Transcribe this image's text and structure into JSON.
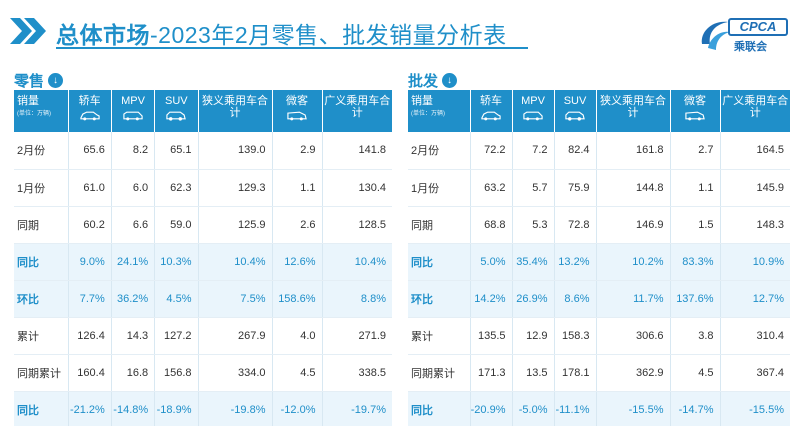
{
  "header": {
    "title_bold": "总体市场",
    "title_rest": "-2023年2月零售、批发销量分析表",
    "logo_text": "CPCA",
    "logo_subtext": "乘联会",
    "logo_icon": "swirl-logo-icon",
    "accent_color": "#1f8fc9"
  },
  "retail": {
    "section_label": "零售",
    "corner_label": "销量",
    "corner_unit": "(单位：万辆)",
    "columns": [
      "轿车",
      "MPV",
      "SUV",
      "狭义乘用车合计",
      "微客",
      "广义乘用车合计"
    ],
    "rows": [
      {
        "label": "2月份",
        "highlight": false,
        "values": [
          "65.6",
          "8.2",
          "65.1",
          "139.0",
          "2.9",
          "141.8"
        ]
      },
      {
        "label": "1月份",
        "highlight": false,
        "values": [
          "61.0",
          "6.0",
          "62.3",
          "129.3",
          "1.1",
          "130.4"
        ]
      },
      {
        "label": "同期",
        "highlight": false,
        "values": [
          "60.2",
          "6.6",
          "59.0",
          "125.9",
          "2.6",
          "128.5"
        ]
      },
      {
        "label": "同比",
        "highlight": true,
        "values": [
          "9.0%",
          "24.1%",
          "10.3%",
          "10.4%",
          "12.6%",
          "10.4%"
        ]
      },
      {
        "label": "环比",
        "highlight": true,
        "values": [
          "7.7%",
          "36.2%",
          "4.5%",
          "7.5%",
          "158.6%",
          "8.8%"
        ]
      },
      {
        "label": "累计",
        "highlight": false,
        "values": [
          "126.4",
          "14.3",
          "127.2",
          "267.9",
          "4.0",
          "271.9"
        ]
      },
      {
        "label": "同期累计",
        "highlight": false,
        "values": [
          "160.4",
          "16.8",
          "156.8",
          "334.0",
          "4.5",
          "338.5"
        ]
      },
      {
        "label": "同比",
        "highlight": true,
        "values": [
          "-21.2%",
          "-14.8%",
          "-18.9%",
          "-19.8%",
          "-12.0%",
          "-19.7%"
        ]
      }
    ]
  },
  "wholesale": {
    "section_label": "批发",
    "corner_label": "销量",
    "corner_unit": "(单位：万辆)",
    "columns": [
      "轿车",
      "MPV",
      "SUV",
      "狭义乘用车合计",
      "微客",
      "广义乘用车合计"
    ],
    "rows": [
      {
        "label": "2月份",
        "highlight": false,
        "values": [
          "72.2",
          "7.2",
          "82.4",
          "161.8",
          "2.7",
          "164.5"
        ]
      },
      {
        "label": "1月份",
        "highlight": false,
        "values": [
          "63.2",
          "5.7",
          "75.9",
          "144.8",
          "1.1",
          "145.9"
        ]
      },
      {
        "label": "同期",
        "highlight": false,
        "values": [
          "68.8",
          "5.3",
          "72.8",
          "146.9",
          "1.5",
          "148.3"
        ]
      },
      {
        "label": "同比",
        "highlight": true,
        "values": [
          "5.0%",
          "35.4%",
          "13.2%",
          "10.2%",
          "83.3%",
          "10.9%"
        ]
      },
      {
        "label": "环比",
        "highlight": true,
        "values": [
          "14.2%",
          "26.9%",
          "8.6%",
          "11.7%",
          "137.6%",
          "12.7%"
        ]
      },
      {
        "label": "累计",
        "highlight": false,
        "values": [
          "135.5",
          "12.9",
          "158.3",
          "306.6",
          "3.8",
          "310.4"
        ]
      },
      {
        "label": "同期累计",
        "highlight": false,
        "values": [
          "171.3",
          "13.5",
          "178.1",
          "362.9",
          "4.5",
          "367.4"
        ]
      },
      {
        "label": "同比",
        "highlight": true,
        "values": [
          "-20.9%",
          "-5.0%",
          "-11.1%",
          "-15.5%",
          "-14.7%",
          "-15.5%"
        ]
      }
    ]
  }
}
